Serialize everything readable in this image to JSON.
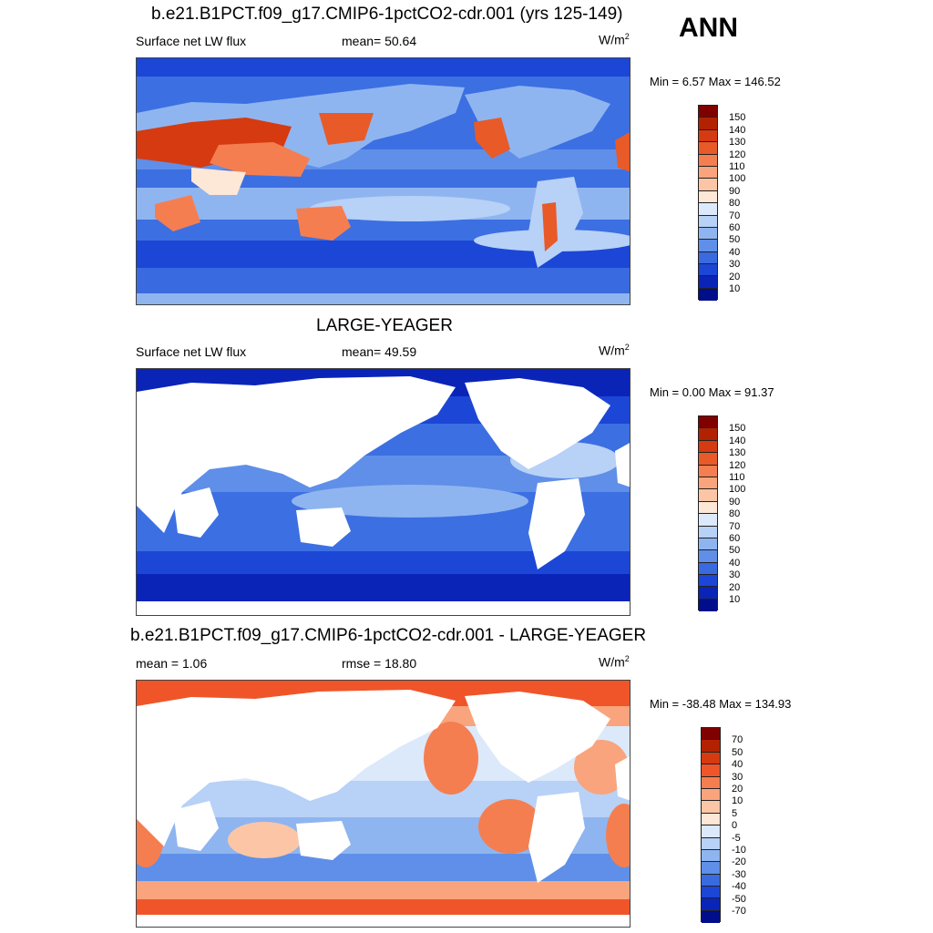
{
  "header": {
    "season": "ANN"
  },
  "panels": [
    {
      "title": "b.e21.B1PCT.f09_g17.CMIP6-1pctCO2-cdr.001 (yrs 125-149)",
      "left_label": "Surface net LW flux",
      "center_label": "mean=  50.64",
      "unit": "W/m",
      "unit_exp": "2",
      "minmax": "Min =   6.57 Max = 146.52",
      "levels": [
        "150",
        "140",
        "130",
        "120",
        "110",
        "100",
        "90",
        "80",
        "70",
        "60",
        "50",
        "40",
        "30",
        "20",
        "10"
      ],
      "colors": [
        "#800000",
        "#b22200",
        "#d63a10",
        "#e85a28",
        "#f57e50",
        "#f9a47c",
        "#fcc6a6",
        "#fde7d6",
        "#dbe9fb",
        "#b7d1f7",
        "#8fb5f0",
        "#5f8fe8",
        "#3a6ae0",
        "#1c46d6",
        "#0a24b8",
        "#000e8a"
      ]
    },
    {
      "title": "LARGE-YEAGER",
      "left_label": "Surface net LW flux",
      "center_label": "mean=  49.59",
      "unit": "W/m",
      "unit_exp": "2",
      "minmax": "Min =   0.00 Max =  91.37",
      "levels": [
        "150",
        "140",
        "130",
        "120",
        "110",
        "100",
        "90",
        "80",
        "70",
        "60",
        "50",
        "40",
        "30",
        "20",
        "10"
      ],
      "colors": [
        "#800000",
        "#b22200",
        "#d63a10",
        "#e85a28",
        "#f57e50",
        "#f9a47c",
        "#fcc6a6",
        "#fde7d6",
        "#dbe9fb",
        "#b7d1f7",
        "#8fb5f0",
        "#5f8fe8",
        "#3a6ae0",
        "#1c46d6",
        "#0a24b8",
        "#000e8a"
      ]
    },
    {
      "title": "b.e21.B1PCT.f09_g17.CMIP6-1pctCO2-cdr.001 - LARGE-YEAGER",
      "left_label": "mean =   1.06",
      "center_label": "rmse =  18.80",
      "unit": "W/m",
      "unit_exp": "2",
      "minmax": "Min = -38.48 Max = 134.93",
      "levels": [
        "70",
        "50",
        "40",
        "30",
        "20",
        "10",
        "5",
        "0",
        "-5",
        "-10",
        "-20",
        "-30",
        "-40",
        "-50",
        "-70"
      ],
      "colors": [
        "#800000",
        "#b22200",
        "#d63a10",
        "#f0552a",
        "#f57e50",
        "#f9a47c",
        "#fcc6a6",
        "#fde7d6",
        "#dbe9fb",
        "#b7d1f7",
        "#8fb5f0",
        "#5f8fe8",
        "#3a6ae0",
        "#1c46d6",
        "#0a24b8",
        "#000e8a"
      ]
    }
  ]
}
